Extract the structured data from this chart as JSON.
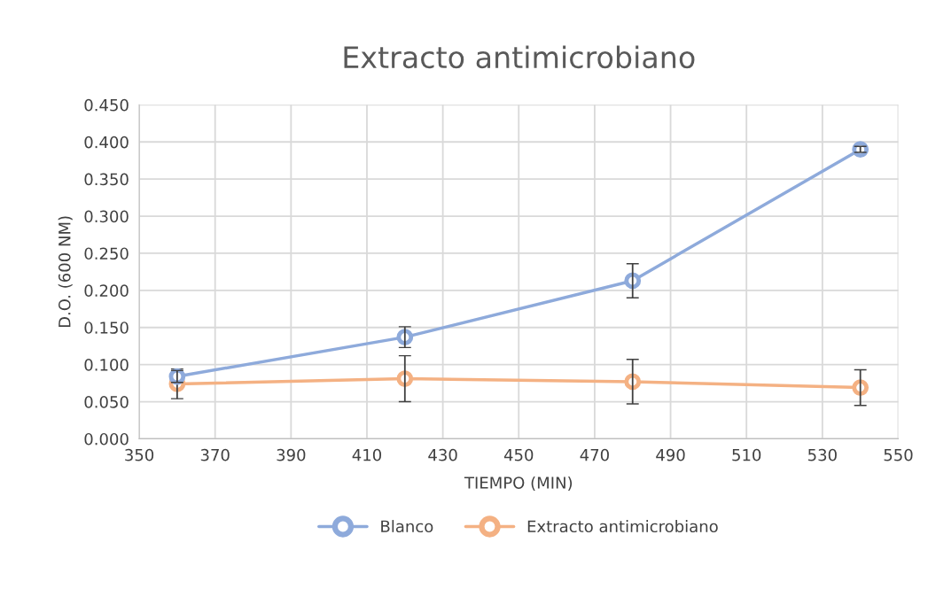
{
  "chart_data": {
    "type": "line",
    "title": "Extracto antimicrobiano",
    "xlabel": "TIEMPO (MIN)",
    "ylabel": "D.O. (600 NM)",
    "x": [
      360,
      420,
      480,
      540
    ],
    "series": [
      {
        "name": "Blanco",
        "color": "#8eaadb",
        "values": [
          0.084,
          0.137,
          0.213,
          0.39
        ],
        "errors": [
          0.008,
          0.014,
          0.023,
          0.004
        ]
      },
      {
        "name": "Extracto antimicrobiano",
        "color": "#f4b183",
        "values": [
          0.074,
          0.081,
          0.077,
          0.069
        ],
        "errors": [
          0.02,
          0.031,
          0.03,
          0.024
        ]
      }
    ],
    "xlim": [
      350,
      550
    ],
    "xticks": [
      350,
      370,
      390,
      410,
      430,
      450,
      470,
      490,
      510,
      530,
      550
    ],
    "ylim": [
      0,
      0.45
    ],
    "yticks": [
      {
        "value": 0,
        "label": "0.000"
      },
      {
        "value": 0.05,
        "label": "0.050"
      },
      {
        "value": 0.1,
        "label": "0.100"
      },
      {
        "value": 0.15,
        "label": "0.150"
      },
      {
        "value": 0.2,
        "label": "0.200"
      },
      {
        "value": 0.25,
        "label": "0.250"
      },
      {
        "value": 0.3,
        "label": "0.300"
      },
      {
        "value": 0.35,
        "label": "0.350"
      },
      {
        "value": 0.4,
        "label": "0.400"
      },
      {
        "value": 0.45,
        "label": "0.450"
      }
    ],
    "grid": true,
    "legend": "bottom",
    "marker": "circle",
    "line_style": "solid"
  }
}
